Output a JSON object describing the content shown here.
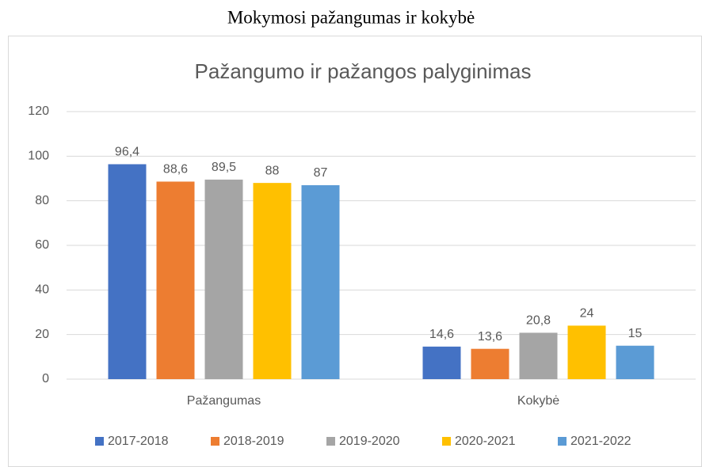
{
  "heading": "Mokymosi pažangumas ir kokybė",
  "chart_data": {
    "type": "bar",
    "title": "Pažangumo ir pažangos palyginimas",
    "categories": [
      "Pažangumas",
      "Kokybė"
    ],
    "series": [
      {
        "name": "2017-2018",
        "color": "#4472c4",
        "values": [
          96.4,
          14.6
        ],
        "value_labels": [
          "96,4",
          "14,6"
        ]
      },
      {
        "name": "2018-2019",
        "color": "#ed7d31",
        "values": [
          88.6,
          13.6
        ],
        "value_labels": [
          "88,6",
          "13,6"
        ]
      },
      {
        "name": "2019-2020",
        "color": "#a5a5a5",
        "values": [
          89.5,
          20.8
        ],
        "value_labels": [
          "89,5",
          "20,8"
        ]
      },
      {
        "name": "2020-2021",
        "color": "#ffc000",
        "values": [
          88,
          24
        ],
        "value_labels": [
          "88",
          "24"
        ]
      },
      {
        "name": "2021-2022",
        "color": "#5b9bd5",
        "values": [
          87,
          15
        ],
        "value_labels": [
          "87",
          "15"
        ]
      }
    ],
    "ylim": [
      0,
      120
    ],
    "yticks": [
      0,
      20,
      40,
      60,
      80,
      100,
      120
    ],
    "grid": true,
    "legend": "bottom"
  }
}
